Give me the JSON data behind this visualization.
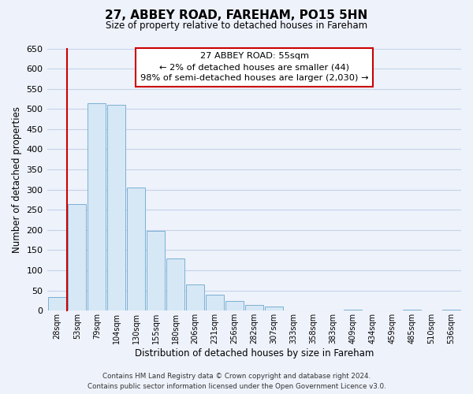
{
  "title": "27, ABBEY ROAD, FAREHAM, PO15 5HN",
  "subtitle": "Size of property relative to detached houses in Fareham",
  "xlabel": "Distribution of detached houses by size in Fareham",
  "ylabel": "Number of detached properties",
  "bar_labels": [
    "28sqm",
    "53sqm",
    "79sqm",
    "104sqm",
    "130sqm",
    "155sqm",
    "180sqm",
    "206sqm",
    "231sqm",
    "256sqm",
    "282sqm",
    "307sqm",
    "333sqm",
    "358sqm",
    "383sqm",
    "409sqm",
    "434sqm",
    "459sqm",
    "485sqm",
    "510sqm",
    "536sqm"
  ],
  "bar_values": [
    33,
    265,
    515,
    510,
    305,
    197,
    130,
    65,
    40,
    24,
    15,
    10,
    0,
    0,
    0,
    2,
    0,
    0,
    2,
    0,
    2
  ],
  "bar_color": "#d6e8f5",
  "bar_edge_color": "#7ab0d4",
  "highlight_line_color": "#cc0000",
  "annotation_title": "27 ABBEY ROAD: 55sqm",
  "annotation_line1": "← 2% of detached houses are smaller (44)",
  "annotation_line2": "98% of semi-detached houses are larger (2,030) →",
  "annotation_box_color": "#ffffff",
  "annotation_box_edge_color": "#cc0000",
  "ylim": [
    0,
    650
  ],
  "yticks": [
    0,
    50,
    100,
    150,
    200,
    250,
    300,
    350,
    400,
    450,
    500,
    550,
    600,
    650
  ],
  "footer_line1": "Contains HM Land Registry data © Crown copyright and database right 2024.",
  "footer_line2": "Contains public sector information licensed under the Open Government Licence v3.0.",
  "bg_color": "#eef2fb",
  "grid_color": "#c5d3e8"
}
